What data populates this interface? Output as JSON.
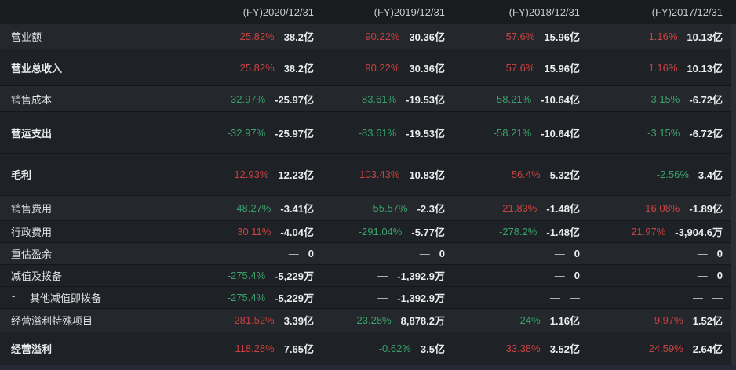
{
  "header": {
    "periods": [
      "(FY)2020/12/31",
      "(FY)2019/12/31",
      "(FY)2018/12/31",
      "(FY)2017/12/31"
    ]
  },
  "colors": {
    "up": "#c84341",
    "down": "#3aa36b",
    "flat_dash": "#bfc1c3",
    "row_light_bg": "#24272b",
    "row_dark_bg": "#1e2125",
    "header_bg": "#191b1d",
    "value_text": "#eceeef",
    "bottom_strip_bg": "#252a36"
  },
  "table": {
    "indent_marker": "-",
    "rows": [
      {
        "label": "营业额",
        "bold": false,
        "indent": false,
        "tone": "light",
        "cells": [
          {
            "pct": "25.82%",
            "trend": "up",
            "value": "38.2亿"
          },
          {
            "pct": "90.22%",
            "trend": "up",
            "value": "30.36亿"
          },
          {
            "pct": "57.6%",
            "trend": "up",
            "value": "15.96亿"
          },
          {
            "pct": "1.16%",
            "trend": "up",
            "value": "10.13亿"
          }
        ]
      },
      {
        "label": "营业总收入",
        "bold": true,
        "indent": false,
        "tone": "dark",
        "cells": [
          {
            "pct": "25.82%",
            "trend": "up",
            "value": "38.2亿"
          },
          {
            "pct": "90.22%",
            "trend": "up",
            "value": "30.36亿"
          },
          {
            "pct": "57.6%",
            "trend": "up",
            "value": "15.96亿"
          },
          {
            "pct": "1.16%",
            "trend": "up",
            "value": "10.13亿"
          }
        ]
      },
      {
        "label": "销售成本",
        "bold": false,
        "indent": false,
        "tone": "light",
        "cells": [
          {
            "pct": "-32.97%",
            "trend": "down",
            "value": "-25.97亿"
          },
          {
            "pct": "-83.61%",
            "trend": "down",
            "value": "-19.53亿"
          },
          {
            "pct": "-58.21%",
            "trend": "down",
            "value": "-10.64亿"
          },
          {
            "pct": "-3.15%",
            "trend": "down",
            "value": "-6.72亿"
          }
        ]
      },
      {
        "label": "营运支出",
        "bold": true,
        "indent": false,
        "tone": "dark",
        "cells": [
          {
            "pct": "-32.97%",
            "trend": "down",
            "value": "-25.97亿"
          },
          {
            "pct": "-83.61%",
            "trend": "down",
            "value": "-19.53亿"
          },
          {
            "pct": "-58.21%",
            "trend": "down",
            "value": "-10.64亿"
          },
          {
            "pct": "-3.15%",
            "trend": "down",
            "value": "-6.72亿"
          }
        ]
      },
      {
        "label": "毛利",
        "bold": true,
        "indent": false,
        "tone": "dark",
        "cells": [
          {
            "pct": "12.93%",
            "trend": "up",
            "value": "12.23亿"
          },
          {
            "pct": "103.43%",
            "trend": "up",
            "value": "10.83亿"
          },
          {
            "pct": "56.4%",
            "trend": "up",
            "value": "5.32亿"
          },
          {
            "pct": "-2.56%",
            "trend": "down",
            "value": "3.4亿"
          }
        ]
      },
      {
        "label": "销售费用",
        "bold": false,
        "indent": false,
        "tone": "light",
        "cells": [
          {
            "pct": "-48.27%",
            "trend": "down",
            "value": "-3.41亿"
          },
          {
            "pct": "-55.57%",
            "trend": "down",
            "value": "-2.3亿"
          },
          {
            "pct": "21.83%",
            "trend": "up",
            "value": "-1.48亿"
          },
          {
            "pct": "16.08%",
            "trend": "up",
            "value": "-1.89亿"
          }
        ]
      },
      {
        "label": "行政费用",
        "bold": false,
        "indent": false,
        "tone": "dark",
        "cells": [
          {
            "pct": "30.11%",
            "trend": "up",
            "value": "-4.04亿"
          },
          {
            "pct": "-291.04%",
            "trend": "down",
            "value": "-5.77亿"
          },
          {
            "pct": "-278.2%",
            "trend": "down",
            "value": "-1.48亿"
          },
          {
            "pct": "21.97%",
            "trend": "up",
            "value": "-3,904.6万"
          }
        ]
      },
      {
        "label": "重估盈余",
        "bold": false,
        "indent": false,
        "tone": "light",
        "cells": [
          {
            "pct": "—",
            "trend": "flat",
            "value": "0"
          },
          {
            "pct": "—",
            "trend": "flat",
            "value": "0"
          },
          {
            "pct": "—",
            "trend": "flat",
            "value": "0"
          },
          {
            "pct": "—",
            "trend": "flat",
            "value": "0"
          }
        ]
      },
      {
        "label": "减值及拨备",
        "bold": false,
        "indent": false,
        "tone": "dark",
        "cells": [
          {
            "pct": "-275.4%",
            "trend": "down",
            "value": "-5,229万"
          },
          {
            "pct": "—",
            "trend": "flat",
            "value": "-1,392.9万"
          },
          {
            "pct": "—",
            "trend": "flat",
            "value": "0"
          },
          {
            "pct": "—",
            "trend": "flat",
            "value": "0"
          }
        ]
      },
      {
        "label": "其他减值即拨备",
        "bold": false,
        "indent": true,
        "tone": "dark",
        "cells": [
          {
            "pct": "-275.4%",
            "trend": "down",
            "value": "-5,229万"
          },
          {
            "pct": "—",
            "trend": "flat",
            "value": "-1,392.9万"
          },
          {
            "pct": "—",
            "trend": "flat",
            "value": "—"
          },
          {
            "pct": "—",
            "trend": "flat",
            "value": "—"
          }
        ]
      },
      {
        "label": "经营溢利特殊项目",
        "bold": false,
        "indent": false,
        "tone": "light",
        "cells": [
          {
            "pct": "281.52%",
            "trend": "up",
            "value": "3.39亿"
          },
          {
            "pct": "-23.28%",
            "trend": "down",
            "value": "8,878.2万"
          },
          {
            "pct": "-24%",
            "trend": "down",
            "value": "1.16亿"
          },
          {
            "pct": "9.97%",
            "trend": "up",
            "value": "1.52亿"
          }
        ]
      },
      {
        "label": "经营溢利",
        "bold": true,
        "indent": false,
        "tone": "dark",
        "cells": [
          {
            "pct": "118.28%",
            "trend": "up",
            "value": "7.65亿"
          },
          {
            "pct": "-0.62%",
            "trend": "down",
            "value": "3.5亿"
          },
          {
            "pct": "33.38%",
            "trend": "up",
            "value": "3.52亿"
          },
          {
            "pct": "24.59%",
            "trend": "up",
            "value": "2.64亿"
          }
        ]
      }
    ]
  }
}
